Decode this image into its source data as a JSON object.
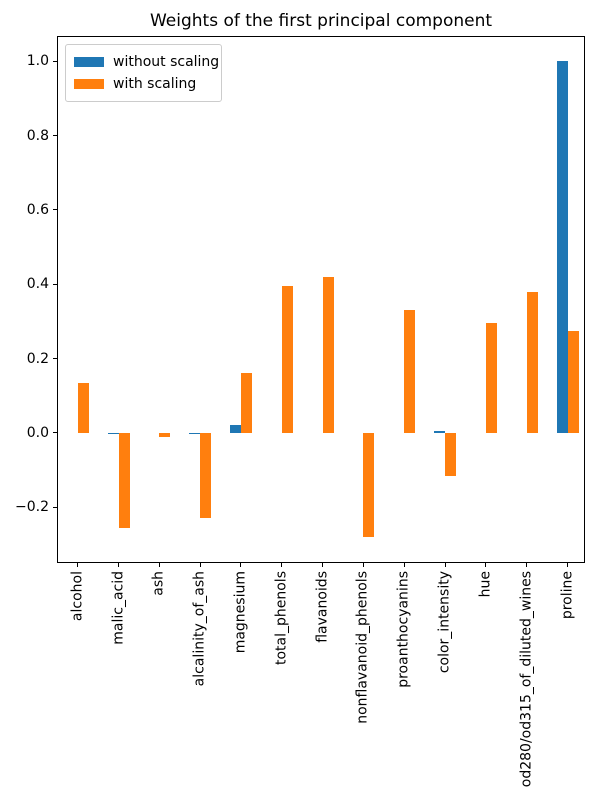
{
  "title": "Weights of the first principal component",
  "legend": {
    "items": [
      {
        "label": "without scaling",
        "color": "#1f77b4"
      },
      {
        "label": "with scaling",
        "color": "#ff7f0e"
      }
    ]
  },
  "colors": {
    "axis": "#000000",
    "background": "#ffffff",
    "legend_border": "#cccccc",
    "series_blue": "#1f77b4",
    "series_orange": "#ff7f0e"
  },
  "chart_data": {
    "type": "bar",
    "title": "Weights of the first principal component",
    "xlabel": "",
    "ylabel": "",
    "grid": false,
    "legend_position": "upper left",
    "categories": [
      "alcohol",
      "malic_acid",
      "ash",
      "alcalinity_of_ash",
      "magnesium",
      "total_phenols",
      "flavanoids",
      "nonflavanoid_phenols",
      "proanthocyanins",
      "color_intensity",
      "hue",
      "od280/od315_of_diluted_wines",
      "proline"
    ],
    "series": [
      {
        "name": "without scaling",
        "color": "#1f77b4",
        "values": [
          0.0,
          -0.002,
          0.0,
          -0.004,
          0.022,
          0.0,
          0.0,
          0.0,
          0.0,
          0.004,
          0.0,
          0.0,
          1.0
        ]
      },
      {
        "name": "with scaling",
        "color": "#ff7f0e",
        "values": [
          0.135,
          -0.255,
          -0.01,
          -0.23,
          0.16,
          0.395,
          0.42,
          -0.28,
          0.33,
          -0.115,
          0.295,
          0.38,
          0.275
        ]
      }
    ],
    "yticks": [
      -0.2,
      0.0,
      0.2,
      0.4,
      0.6,
      0.8,
      1.0
    ],
    "ylim": [
      -0.349,
      1.068
    ]
  }
}
